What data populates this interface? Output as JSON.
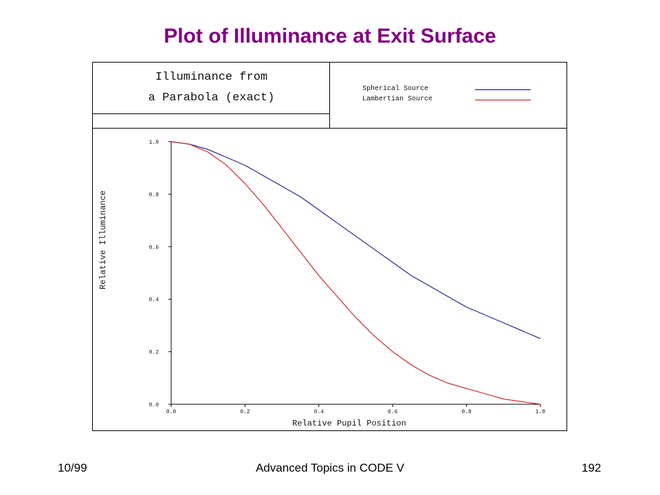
{
  "slide": {
    "title": "Plot of Illuminance at Exit Surface",
    "title_color": "#800080"
  },
  "footer": {
    "date": "10/99",
    "course": "Advanced Topics in CODE V",
    "page": "192"
  },
  "chart_data": {
    "type": "line",
    "title_lines": [
      "Illuminance from",
      "a Parabola (exact)"
    ],
    "xlabel": "Relative Pupil Position",
    "ylabel": "Relative Illuminance",
    "xlim": [
      0,
      1
    ],
    "ylim": [
      0,
      1
    ],
    "xticks": [
      "0.0",
      "0.2",
      "0.4",
      "0.6",
      "0.8",
      "1.0"
    ],
    "yticks": [
      "0.0",
      "0.2",
      "0.4",
      "0.6",
      "0.8",
      "1.0"
    ],
    "grid": false,
    "legend_position": "top-right",
    "x": [
      0.0,
      0.05,
      0.1,
      0.15,
      0.2,
      0.25,
      0.3,
      0.35,
      0.4,
      0.45,
      0.5,
      0.55,
      0.6,
      0.65,
      0.7,
      0.75,
      0.8,
      0.85,
      0.9,
      0.95,
      1.0
    ],
    "series": [
      {
        "name": "Spherical Source",
        "color": "#000080",
        "values": [
          1.0,
          0.99,
          0.97,
          0.94,
          0.91,
          0.87,
          0.83,
          0.79,
          0.74,
          0.69,
          0.64,
          0.59,
          0.54,
          0.49,
          0.45,
          0.41,
          0.37,
          0.34,
          0.31,
          0.28,
          0.25
        ]
      },
      {
        "name": "Lambertian Source",
        "color": "#cc0000",
        "values": [
          1.0,
          0.99,
          0.96,
          0.91,
          0.84,
          0.76,
          0.67,
          0.58,
          0.49,
          0.41,
          0.33,
          0.26,
          0.2,
          0.15,
          0.11,
          0.08,
          0.06,
          0.04,
          0.02,
          0.01,
          0.0
        ]
      }
    ]
  }
}
